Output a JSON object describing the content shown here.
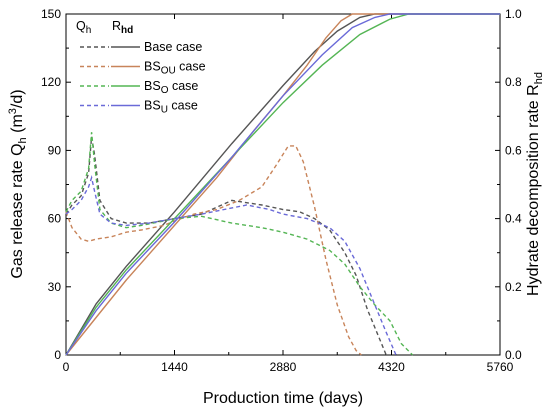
{
  "chart_data": {
    "type": "line",
    "xlabel": "Production time (days)",
    "ylabel_left": {
      "main": "Gas release rate Q",
      "sub": "h",
      "paren": " (m",
      "sup": "3",
      "end": "/d)"
    },
    "ylabel_right": {
      "main": "Hydrate decomposition rate R",
      "sub": "hd"
    },
    "xlim": [
      0,
      5760
    ],
    "ylim_left": [
      0,
      150
    ],
    "ylim_right": [
      0,
      1.0
    ],
    "x_ticks": [
      "0",
      "1440",
      "2880",
      "4320",
      "5760"
    ],
    "y_left_ticks": [
      "0",
      "30",
      "60",
      "90",
      "120",
      "150"
    ],
    "y_right_ticks": [
      "0.0",
      "0.2",
      "0.4",
      "0.6",
      "0.8",
      "1.0"
    ],
    "legend_headers": {
      "q": {
        "main": "Q",
        "sub": "h"
      },
      "r": {
        "main": "R",
        "sub": "hd"
      }
    },
    "legend_placement": "top-left",
    "series": [
      {
        "name": {
          "main": "Base case",
          "sub": ""
        },
        "color": "#555555",
        "decomposition_rate": {
          "x": [
            0,
            400,
            800,
            1440,
            2200,
            2880,
            3300,
            3600,
            3900,
            4100,
            5760
          ],
          "y": [
            0,
            0.15,
            0.26,
            0.42,
            0.62,
            0.79,
            0.89,
            0.95,
            0.99,
            1.0,
            1.0
          ]
        },
        "gas_release_rate": {
          "x": [
            0,
            80,
            200,
            300,
            340,
            380,
            450,
            600,
            800,
            1100,
            1440,
            1800,
            2200,
            2600,
            2880,
            3100,
            3300,
            3500,
            3700,
            3850,
            4000,
            4150,
            4250
          ],
          "y": [
            62,
            66,
            70,
            80,
            96,
            88,
            68,
            60,
            58,
            58,
            60,
            62,
            68,
            66,
            64,
            63,
            60,
            55,
            45,
            35,
            20,
            8,
            0
          ]
        }
      },
      {
        "name": {
          "main": "BS",
          "sub": "OU",
          "suffix": " case"
        },
        "color": "#c8845a",
        "decomposition_rate": {
          "x": [
            0,
            400,
            800,
            1440,
            2000,
            2500,
            2880,
            3200,
            3450,
            3650,
            3800,
            5760
          ],
          "y": [
            0,
            0.11,
            0.22,
            0.38,
            0.52,
            0.66,
            0.76,
            0.85,
            0.93,
            0.98,
            1.0,
            1.0
          ]
        },
        "gas_release_rate": {
          "x": [
            0,
            80,
            200,
            300,
            400,
            600,
            800,
            1000,
            1300,
            1440,
            1700,
            2000,
            2300,
            2600,
            2800,
            2950,
            3050,
            3150,
            3300,
            3450,
            3600,
            3750,
            3850,
            3920
          ],
          "y": [
            63,
            56,
            51,
            50,
            51,
            52,
            54,
            55,
            57,
            59,
            62,
            64,
            68,
            74,
            84,
            92,
            92,
            85,
            65,
            42,
            22,
            8,
            2,
            0
          ]
        }
      },
      {
        "name": {
          "main": "BS",
          "sub": "O",
          "suffix": "  case"
        },
        "color": "#54b554",
        "decomposition_rate": {
          "x": [
            0,
            400,
            800,
            1440,
            2200,
            2880,
            3400,
            3900,
            4300,
            4550,
            5760
          ],
          "y": [
            0,
            0.14,
            0.25,
            0.4,
            0.58,
            0.74,
            0.85,
            0.94,
            0.985,
            1.0,
            1.0
          ]
        },
        "gas_release_rate": {
          "x": [
            0,
            80,
            200,
            300,
            340,
            380,
            450,
            600,
            800,
            1000,
            1300,
            1440,
            1800,
            2200,
            2600,
            2880,
            3200,
            3500,
            3700,
            3900,
            4100,
            4300,
            4450,
            4600
          ],
          "y": [
            63,
            68,
            72,
            82,
            98,
            84,
            64,
            58,
            56,
            57,
            59,
            60,
            61,
            58,
            56,
            54,
            51,
            46,
            40,
            30,
            22,
            15,
            5,
            0
          ]
        }
      },
      {
        "name": {
          "main": "BS",
          "sub": "U",
          "suffix": "  case"
        },
        "color": "#6a6ad8",
        "decomposition_rate": {
          "x": [
            0,
            400,
            800,
            1440,
            2200,
            2880,
            3400,
            3800,
            4100,
            4300,
            5760
          ],
          "y": [
            0,
            0.13,
            0.24,
            0.39,
            0.58,
            0.76,
            0.88,
            0.96,
            0.99,
            1.0,
            1.0
          ]
        },
        "gas_release_rate": {
          "x": [
            0,
            80,
            200,
            300,
            340,
            380,
            450,
            600,
            800,
            1100,
            1440,
            1800,
            2100,
            2400,
            2700,
            2880,
            3200,
            3500,
            3700,
            3900,
            4100,
            4250,
            4380
          ],
          "y": [
            62,
            64,
            68,
            74,
            78,
            72,
            62,
            58,
            57,
            58,
            60,
            62,
            64,
            66,
            64,
            62,
            60,
            56,
            50,
            38,
            22,
            10,
            0
          ]
        }
      }
    ]
  }
}
